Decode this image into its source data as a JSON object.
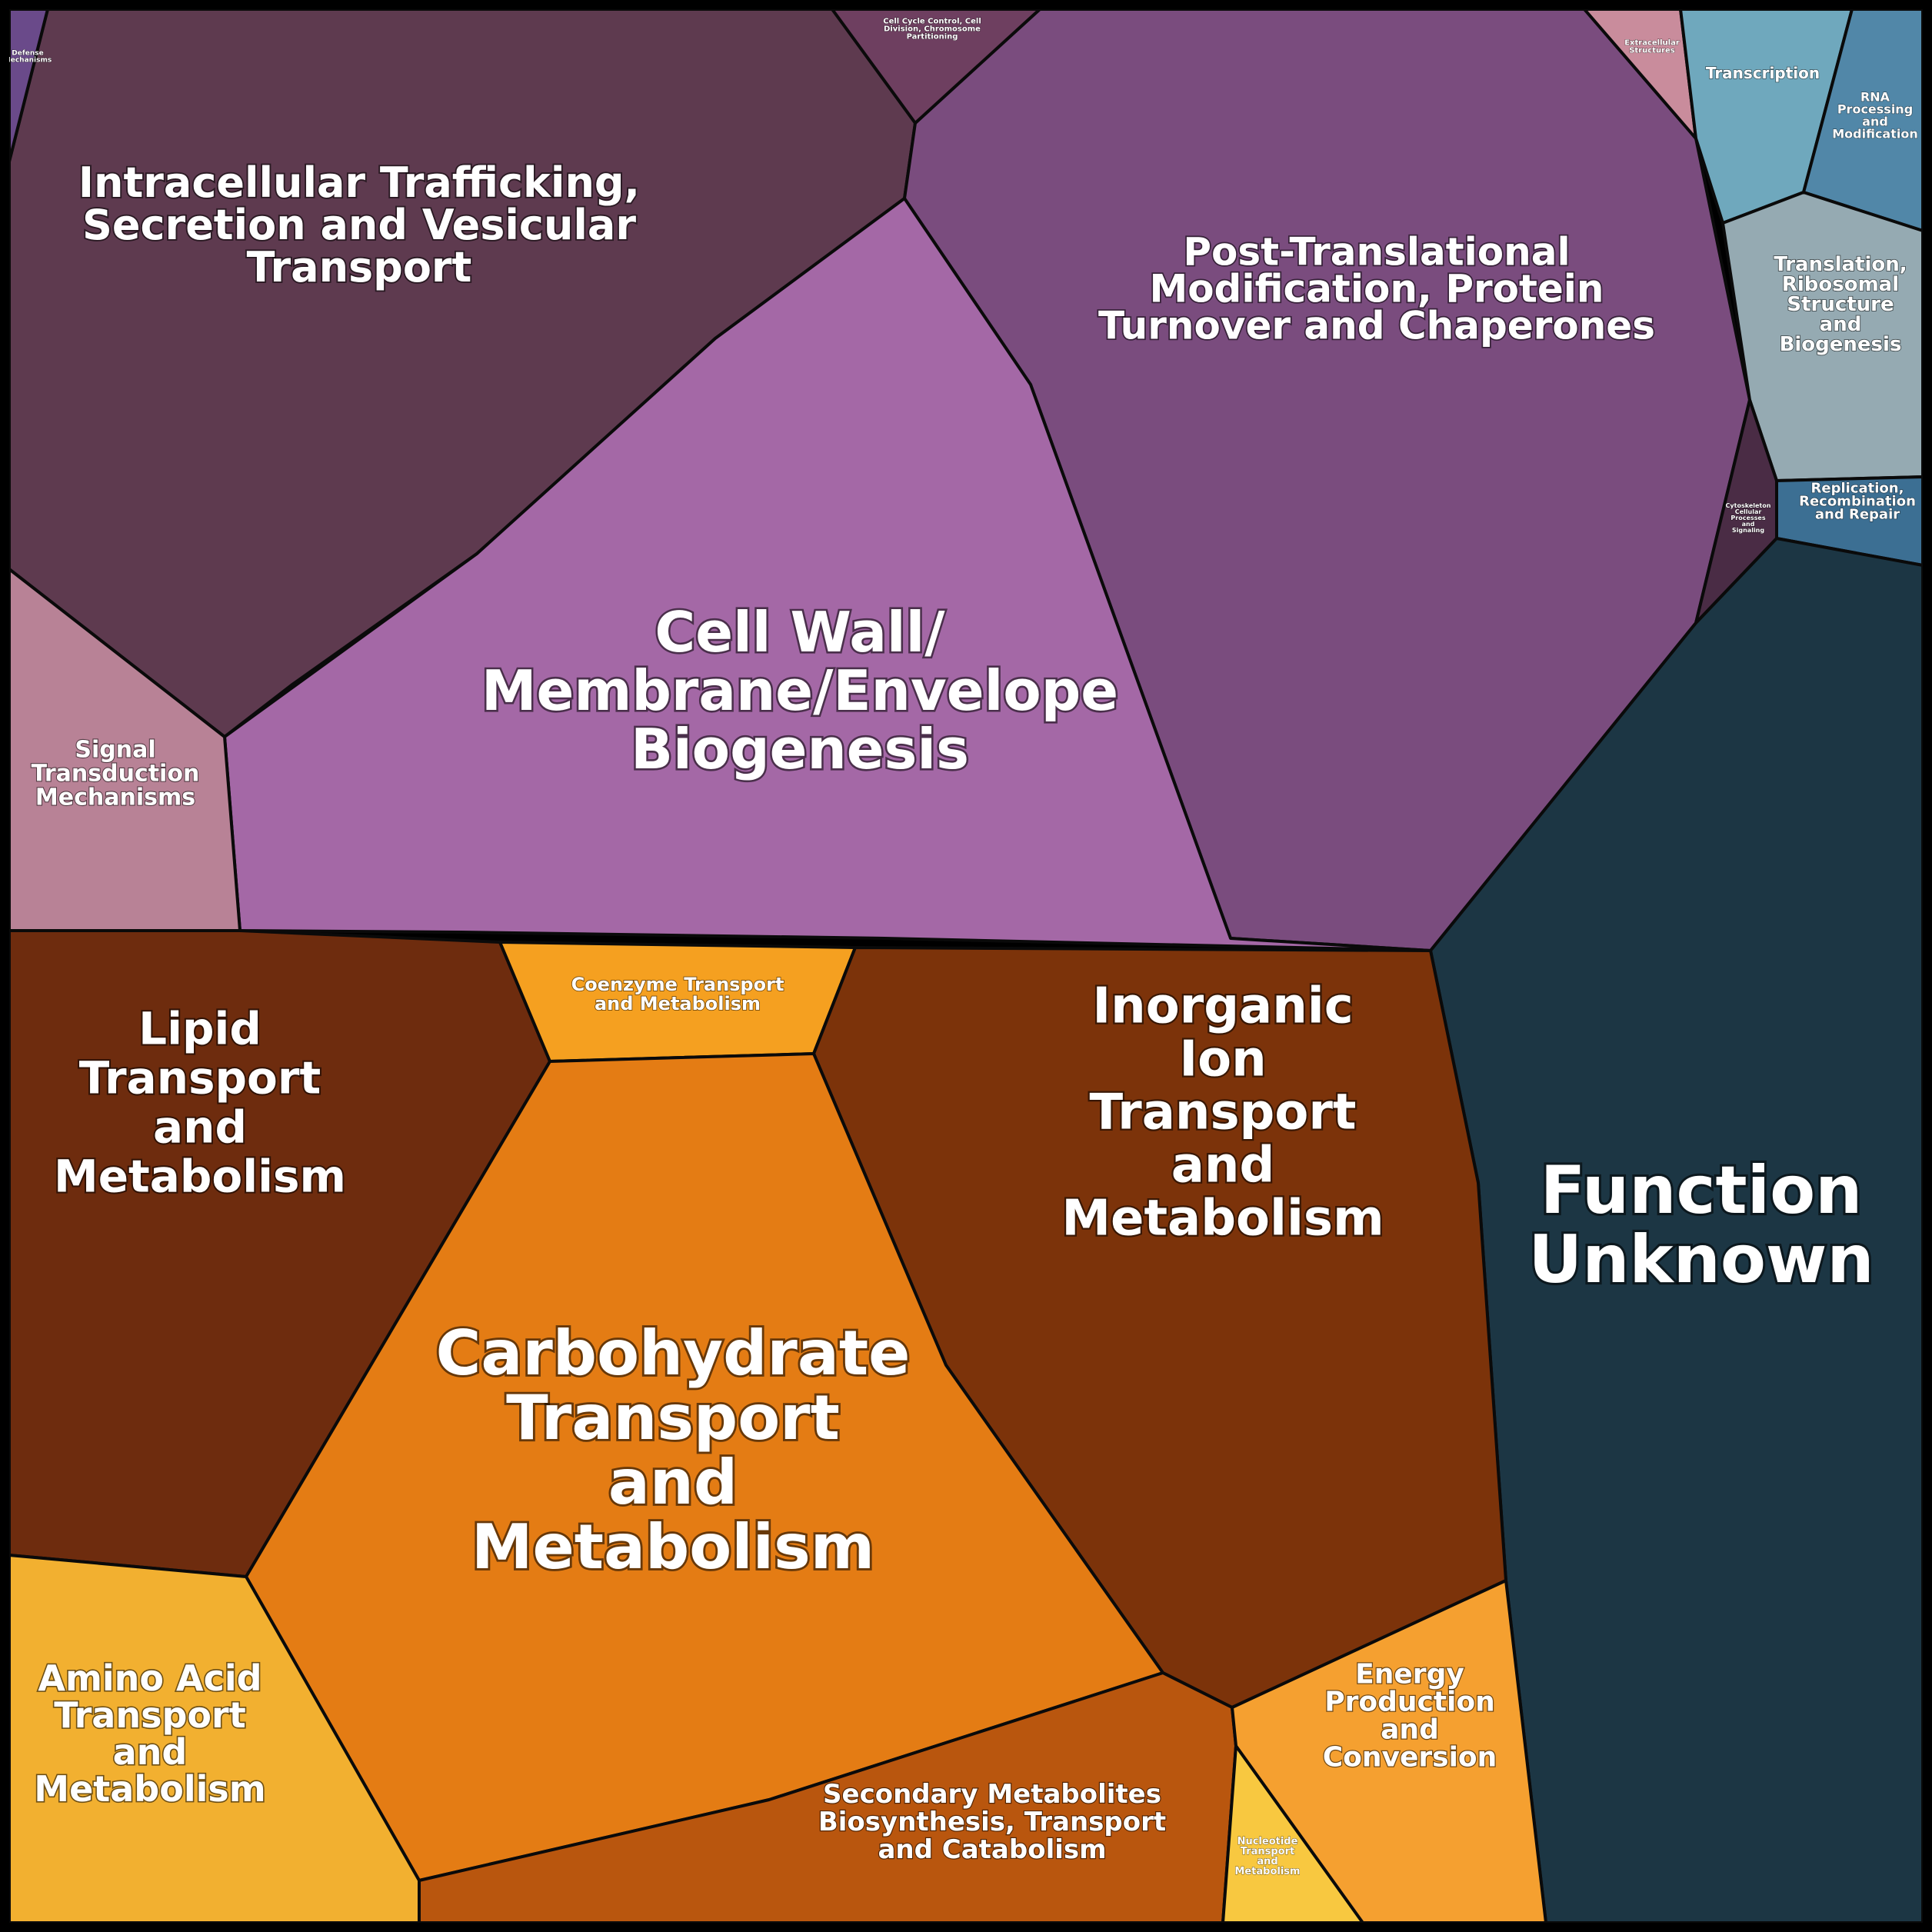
{
  "chart_data": {
    "type": "voronoi-treemap",
    "cells": [
      {
        "key": "intracellular",
        "name": "Intracellular Trafficking, Secretion and Vesicular Transport",
        "lines": [
          "Intracellular Trafficking,",
          "Secretion and Vesicular",
          "Transport"
        ],
        "color": "#5e3a4f"
      },
      {
        "key": "ptm",
        "name": "Post-Translational Modification, Protein Turnover and Chaperones",
        "lines": [
          "Post-Translational",
          "Modification, Protein",
          "Turnover and Chaperones"
        ],
        "color": "#7a4c7e"
      },
      {
        "key": "cellwall",
        "name": "Cell Wall/ Membrane/Envelope Biogenesis",
        "lines": [
          "Cell Wall/",
          "Membrane/Envelope",
          "Biogenesis"
        ],
        "color": "#a468a6"
      },
      {
        "key": "signal",
        "name": "Signal Transduction Mechanisms",
        "lines": [
          "Signal",
          "Transduction",
          "Mechanisms"
        ],
        "color": "#b88296"
      },
      {
        "key": "defense",
        "name": "Defense Mechanisms",
        "lines": [
          "Defense",
          "Mechanisms"
        ],
        "color": "#6a4a8a"
      },
      {
        "key": "cellcycle",
        "name": "Cell Cycle Control, Cell Division, Chromosome Partitioning",
        "lines": [
          "Cell Cycle Control, Cell",
          "Division, Chromosome",
          "Partitioning"
        ],
        "color": "#6e3f60"
      },
      {
        "key": "extracellular",
        "name": "Extracellular Structures",
        "lines": [
          "Extracellular",
          "Structures"
        ],
        "color": "#c98c9c"
      },
      {
        "key": "transcription",
        "name": "Transcription",
        "lines": [
          "Transcription"
        ],
        "color": "#6fa8bd"
      },
      {
        "key": "rna",
        "name": "RNA Processing and Modification",
        "lines": [
          "RNA",
          "Processing",
          "and",
          "Modification"
        ],
        "color": "#5187a8"
      },
      {
        "key": "translation",
        "name": "Translation, Ribosomal Structure and Biogenesis",
        "lines": [
          "Translation,",
          "Ribosomal",
          "Structure",
          "and",
          "Biogenesis"
        ],
        "color": "#95aab2"
      },
      {
        "key": "replication",
        "name": "Replication, Recombination and Repair",
        "lines": [
          "Replication,",
          "Recombination",
          "and Repair"
        ],
        "color": "#3c6f93"
      },
      {
        "key": "cytoskeleton",
        "name": "Cytoskeleton Cellular Processes and Signaling",
        "lines": [
          "Cytoskeleton",
          "Cellular",
          "Processes",
          "and",
          "Signaling"
        ],
        "color": "#4a2c45"
      },
      {
        "key": "unknown",
        "name": "Function Unknown",
        "lines": [
          "Function",
          "Unknown"
        ],
        "color": "#1c3644"
      },
      {
        "key": "lipid",
        "name": "Lipid Transport and Metabolism",
        "lines": [
          "Lipid",
          "Transport",
          "and",
          "Metabolism"
        ],
        "color": "#6e2c0e"
      },
      {
        "key": "coenzyme",
        "name": "Coenzyme Transport and Metabolism",
        "lines": [
          "Coenzyme Transport",
          "and Metabolism"
        ],
        "color": "#f5a020"
      },
      {
        "key": "inorganic",
        "name": "Inorganic Ion Transport and Metabolism",
        "lines": [
          "Inorganic",
          "Ion",
          "Transport",
          "and",
          "Metabolism"
        ],
        "color": "#7c330a"
      },
      {
        "key": "carbohydrate",
        "name": "Carbohydrate Transport and Metabolism",
        "lines": [
          "Carbohydrate",
          "Transport",
          "and",
          "Metabolism"
        ],
        "color": "#e47c14"
      },
      {
        "key": "aminoacid",
        "name": "Amino Acid Transport and Metabolism",
        "lines": [
          "Amino Acid",
          "Transport",
          "and",
          "Metabolism"
        ],
        "color": "#f2b030"
      },
      {
        "key": "secondary",
        "name": "Secondary Metabolites Biosynthesis, Transport and Catabolism",
        "lines": [
          "Secondary Metabolites",
          "Biosynthesis, Transport",
          "and Catabolism"
        ],
        "color": "#b9560e"
      },
      {
        "key": "nucleotide",
        "name": "Nucleotide Transport and Metabolism",
        "lines": [
          "Nucleotide",
          "Transport",
          "and",
          "Metabolism"
        ],
        "color": "#f8c840"
      },
      {
        "key": "energy",
        "name": "Energy Production and Conversion",
        "lines": [
          "Energy",
          "Production",
          "and",
          "Conversion"
        ],
        "color": "#f5a030"
      }
    ]
  }
}
